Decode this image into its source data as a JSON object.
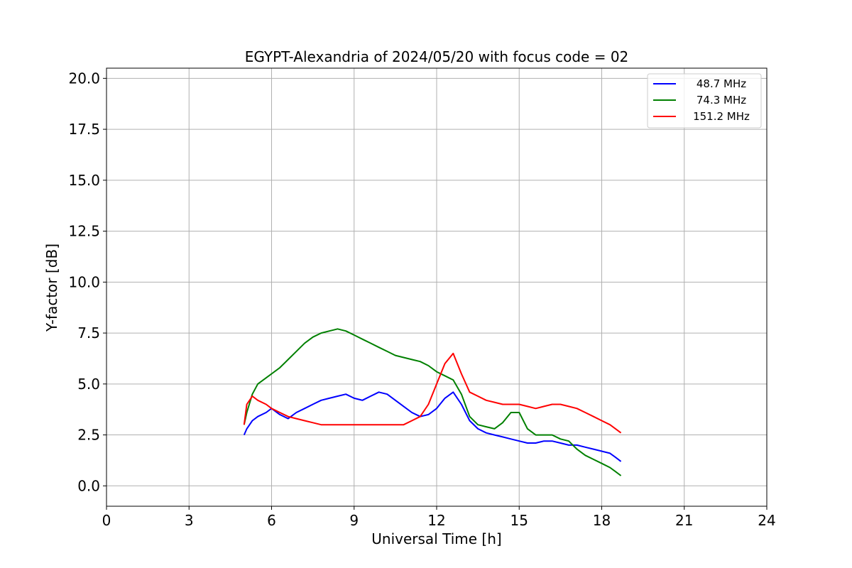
{
  "chart_data": {
    "type": "line",
    "title": "EGYPT-Alexandria of 2024/05/20 with focus code = 02",
    "xlabel": "Universal Time [h]",
    "ylabel": "Y-factor [dB]",
    "xlim": [
      0,
      24
    ],
    "ylim": [
      -1,
      20.5
    ],
    "xticks": [
      0,
      3,
      6,
      9,
      12,
      15,
      18,
      21,
      24
    ],
    "xtick_labels": [
      "0",
      "3",
      "6",
      "9",
      "12",
      "15",
      "18",
      "21",
      "24"
    ],
    "yticks": [
      0,
      2.5,
      5,
      7.5,
      10,
      12.5,
      15,
      17.5,
      20
    ],
    "ytick_labels": [
      "0.0",
      "2.5",
      "5.0",
      "7.5",
      "10.0",
      "12.5",
      "15.0",
      "17.5",
      "20.0"
    ],
    "grid": true,
    "legend_position": "top-right",
    "series": [
      {
        "name": "48.7 MHz",
        "color": "#0000ff",
        "x": [
          5.0,
          5.1,
          5.3,
          5.5,
          5.8,
          6.0,
          6.3,
          6.6,
          6.9,
          7.2,
          7.5,
          7.8,
          8.1,
          8.4,
          8.7,
          9.0,
          9.3,
          9.6,
          9.9,
          10.2,
          10.5,
          10.8,
          11.1,
          11.4,
          11.7,
          12.0,
          12.3,
          12.6,
          12.9,
          13.2,
          13.5,
          13.8,
          14.1,
          14.4,
          14.7,
          15.0,
          15.3,
          15.6,
          15.9,
          16.2,
          16.5,
          16.8,
          17.1,
          17.4,
          17.7,
          18.0,
          18.3,
          18.5,
          18.7
        ],
        "y": [
          2.5,
          2.8,
          3.2,
          3.4,
          3.6,
          3.8,
          3.5,
          3.3,
          3.6,
          3.8,
          4.0,
          4.2,
          4.3,
          4.4,
          4.5,
          4.3,
          4.2,
          4.4,
          4.6,
          4.5,
          4.2,
          3.9,
          3.6,
          3.4,
          3.5,
          3.8,
          4.3,
          4.6,
          4.0,
          3.2,
          2.8,
          2.6,
          2.5,
          2.4,
          2.3,
          2.2,
          2.1,
          2.1,
          2.2,
          2.2,
          2.1,
          2.0,
          2.0,
          1.9,
          1.8,
          1.7,
          1.6,
          1.4,
          1.2
        ]
      },
      {
        "name": "74.3 MHz",
        "color": "#008000",
        "x": [
          5.0,
          5.1,
          5.3,
          5.5,
          5.8,
          6.0,
          6.3,
          6.6,
          6.9,
          7.2,
          7.5,
          7.8,
          8.1,
          8.4,
          8.7,
          9.0,
          9.3,
          9.6,
          9.9,
          10.2,
          10.5,
          10.8,
          11.1,
          11.4,
          11.7,
          12.0,
          12.3,
          12.6,
          12.9,
          13.2,
          13.5,
          13.8,
          14.1,
          14.4,
          14.7,
          15.0,
          15.3,
          15.6,
          15.9,
          16.2,
          16.5,
          16.8,
          17.1,
          17.4,
          17.7,
          18.0,
          18.3,
          18.5,
          18.7
        ],
        "y": [
          3.0,
          3.6,
          4.5,
          5.0,
          5.3,
          5.5,
          5.8,
          6.2,
          6.6,
          7.0,
          7.3,
          7.5,
          7.6,
          7.7,
          7.6,
          7.4,
          7.2,
          7.0,
          6.8,
          6.6,
          6.4,
          6.3,
          6.2,
          6.1,
          5.9,
          5.6,
          5.4,
          5.2,
          4.5,
          3.4,
          3.0,
          2.9,
          2.8,
          3.1,
          3.6,
          3.6,
          2.8,
          2.5,
          2.5,
          2.5,
          2.3,
          2.2,
          1.8,
          1.5,
          1.3,
          1.1,
          0.9,
          0.7,
          0.5
        ]
      },
      {
        "name": "151.2 MHz",
        "color": "#ff0000",
        "x": [
          5.0,
          5.1,
          5.3,
          5.5,
          5.8,
          6.0,
          6.3,
          6.6,
          6.9,
          7.2,
          7.5,
          7.8,
          8.1,
          8.4,
          8.7,
          9.0,
          9.3,
          9.6,
          9.9,
          10.2,
          10.5,
          10.8,
          11.1,
          11.4,
          11.7,
          12.0,
          12.3,
          12.6,
          12.9,
          13.2,
          13.5,
          13.8,
          14.1,
          14.4,
          14.7,
          15.0,
          15.3,
          15.6,
          15.9,
          16.2,
          16.5,
          16.8,
          17.1,
          17.4,
          17.7,
          18.0,
          18.3,
          18.5,
          18.7
        ],
        "y": [
          3.0,
          4.0,
          4.4,
          4.2,
          4.0,
          3.8,
          3.6,
          3.4,
          3.3,
          3.2,
          3.1,
          3.0,
          3.0,
          3.0,
          3.0,
          3.0,
          3.0,
          3.0,
          3.0,
          3.0,
          3.0,
          3.0,
          3.2,
          3.4,
          4.0,
          5.0,
          6.0,
          6.5,
          5.5,
          4.6,
          4.4,
          4.2,
          4.1,
          4.0,
          4.0,
          4.0,
          3.9,
          3.8,
          3.9,
          4.0,
          4.0,
          3.9,
          3.8,
          3.6,
          3.4,
          3.2,
          3.0,
          2.8,
          2.6
        ]
      }
    ]
  }
}
